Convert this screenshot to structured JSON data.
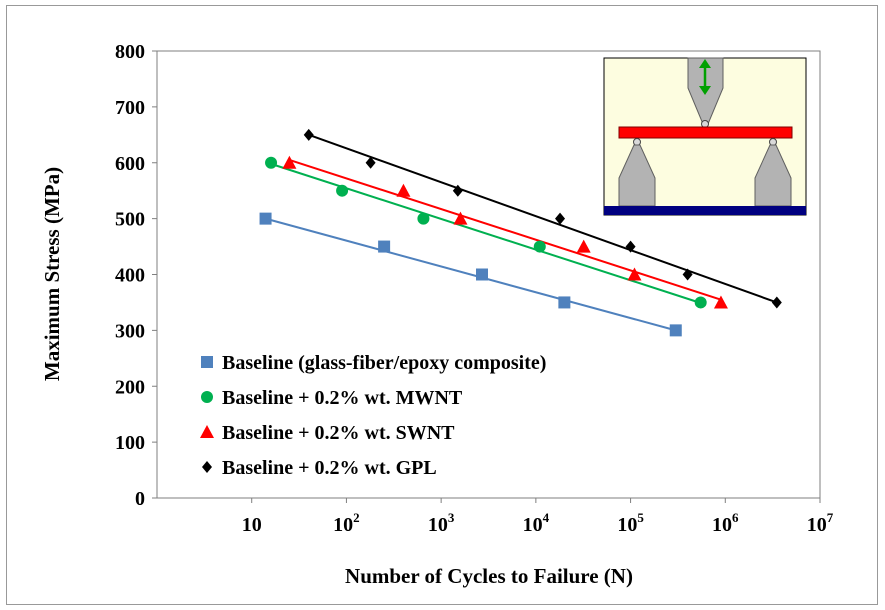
{
  "chart_data": {
    "type": "scatter",
    "xscale": "log",
    "xlim": [
      1,
      10000000
    ],
    "ylim": [
      0,
      800
    ],
    "xlabel": "Number of Cycles to Failure (N)",
    "ylabel": "Maximum Stress (MPa)",
    "y_ticks": [
      "0",
      "100",
      "200",
      "300",
      "400",
      "500",
      "600",
      "700",
      "800"
    ],
    "x_ticks": [
      {
        "value": 10,
        "base": "10",
        "exp": ""
      },
      {
        "value": 100,
        "base": "10",
        "exp": "2"
      },
      {
        "value": 1000,
        "base": "10",
        "exp": "3"
      },
      {
        "value": 10000,
        "base": "10",
        "exp": "4"
      },
      {
        "value": 100000,
        "base": "10",
        "exp": "5"
      },
      {
        "value": 1000000,
        "base": "10",
        "exp": "6"
      },
      {
        "value": 10000000,
        "base": "10",
        "exp": "7"
      }
    ],
    "grid": false,
    "legend_position": "bottom-left",
    "series": [
      {
        "name": "Baseline (glass-fiber/epoxy composite)",
        "marker": "square",
        "color": "#4f81bd",
        "points": [
          [
            14,
            500
          ],
          [
            250,
            450
          ],
          [
            2700,
            400
          ],
          [
            20000,
            350
          ],
          [
            300000,
            300
          ]
        ],
        "trendline": [
          [
            14,
            500
          ],
          [
            300000,
            300
          ]
        ]
      },
      {
        "name": "Baseline + 0.2% wt. MWNT",
        "marker": "circle",
        "color": "#00b050",
        "points": [
          [
            16,
            600
          ],
          [
            90,
            550
          ],
          [
            650,
            500
          ],
          [
            11000,
            450
          ],
          [
            550000,
            350
          ]
        ],
        "trendline": [
          [
            16,
            598
          ],
          [
            550000,
            349
          ]
        ]
      },
      {
        "name": "Baseline + 0.2% wt. SWNT",
        "marker": "triangle",
        "color": "#ff0000",
        "points": [
          [
            25,
            600
          ],
          [
            400,
            550
          ],
          [
            1600,
            500
          ],
          [
            32000,
            450
          ],
          [
            110000,
            400
          ],
          [
            900000,
            350
          ]
        ],
        "trendline": [
          [
            25,
            605
          ],
          [
            900000,
            355
          ]
        ]
      },
      {
        "name": "Baseline + 0.2% wt. GPL",
        "marker": "diamond",
        "color": "#000000",
        "points": [
          [
            40,
            650
          ],
          [
            180,
            600
          ],
          [
            1500,
            550
          ],
          [
            18000,
            500
          ],
          [
            100000,
            450
          ],
          [
            400000,
            400
          ],
          [
            3500000,
            350
          ]
        ],
        "trendline": [
          [
            40,
            650
          ],
          [
            3500000,
            350
          ]
        ]
      }
    ]
  },
  "inset": {
    "background": "#fdfde0",
    "beam_color": "#ff0000",
    "base_color": "#000080",
    "support_color": "#b3b3b3",
    "arrow_color": "#00a000",
    "icon": "three-point-bending-fixture-icon"
  }
}
